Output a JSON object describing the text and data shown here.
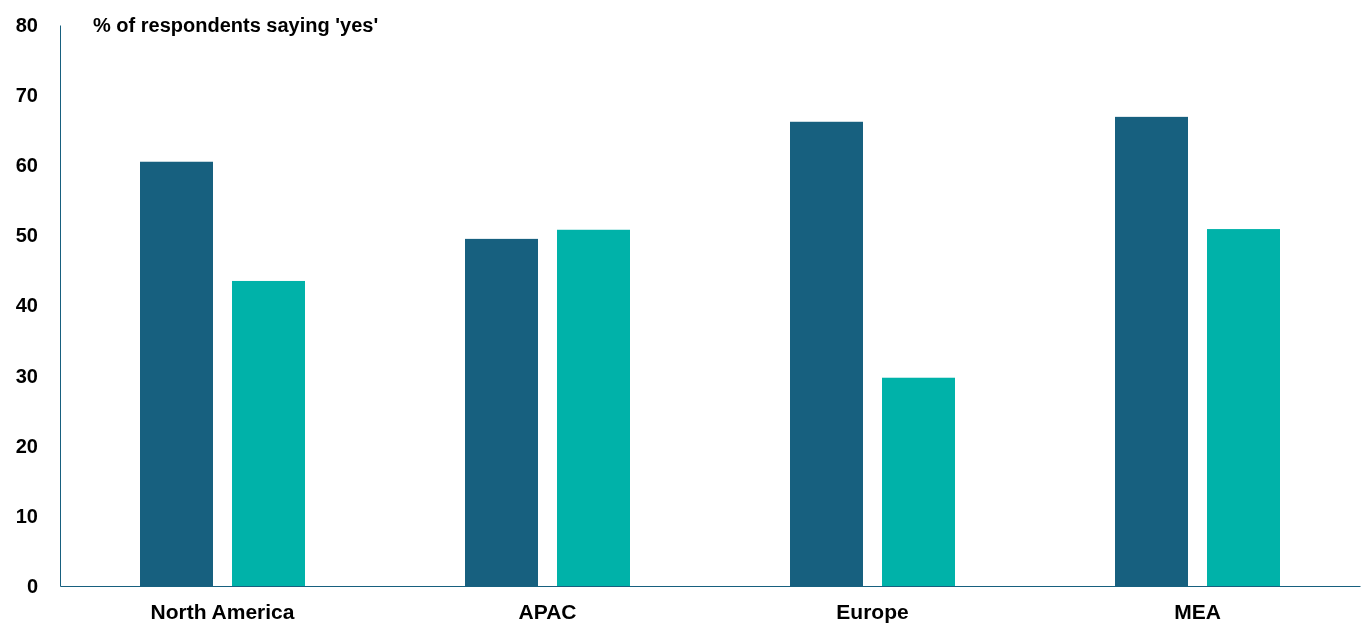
{
  "chart_data": {
    "type": "bar",
    "ylabel": "% of respondents saying 'yes'",
    "categories": [
      "North America",
      "APAC",
      "Europe",
      "MEA"
    ],
    "series": [
      {
        "color": "#17607f",
        "values": [
          60.5,
          49.5,
          66.2,
          66.9
        ]
      },
      {
        "color": "#00b2a9",
        "values": [
          43.5,
          50.8,
          29.7,
          50.9
        ]
      }
    ],
    "ylim": [
      0,
      80
    ],
    "yticks": [
      0,
      10,
      20,
      30,
      40,
      50,
      60,
      70,
      80
    ],
    "grid": false
  }
}
